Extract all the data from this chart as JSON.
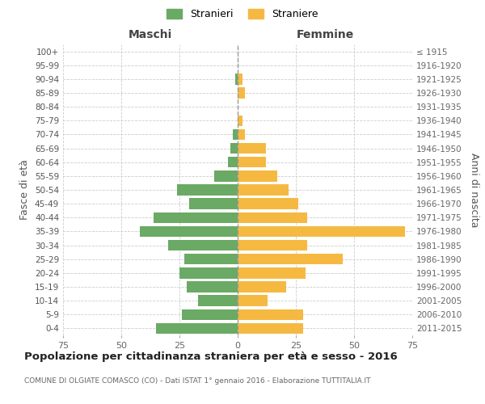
{
  "age_groups": [
    "0-4",
    "5-9",
    "10-14",
    "15-19",
    "20-24",
    "25-29",
    "30-34",
    "35-39",
    "40-44",
    "45-49",
    "50-54",
    "55-59",
    "60-64",
    "65-69",
    "70-74",
    "75-79",
    "80-84",
    "85-89",
    "90-94",
    "95-99",
    "100+"
  ],
  "birth_years": [
    "2011-2015",
    "2006-2010",
    "2001-2005",
    "1996-2000",
    "1991-1995",
    "1986-1990",
    "1981-1985",
    "1976-1980",
    "1971-1975",
    "1966-1970",
    "1961-1965",
    "1956-1960",
    "1951-1955",
    "1946-1950",
    "1941-1945",
    "1936-1940",
    "1931-1935",
    "1926-1930",
    "1921-1925",
    "1916-1920",
    "≤ 1915"
  ],
  "maschi": [
    35,
    24,
    17,
    22,
    25,
    23,
    30,
    42,
    36,
    21,
    26,
    10,
    4,
    3,
    2,
    0,
    0,
    0,
    1,
    0,
    0
  ],
  "femmine": [
    28,
    28,
    13,
    21,
    29,
    45,
    30,
    72,
    30,
    26,
    22,
    17,
    12,
    12,
    3,
    2,
    0,
    3,
    2,
    0,
    0
  ],
  "color_maschi": "#6aaa64",
  "color_femmine": "#f5b942",
  "title": "Popolazione per cittadinanza straniera per età e sesso - 2016",
  "subtitle": "COMUNE DI OLGIATE COMASCO (CO) - Dati ISTAT 1° gennaio 2016 - Elaborazione TUTTITALIA.IT",
  "ylabel_left": "Fasce di età",
  "ylabel_right": "Anni di nascita",
  "xlabel_maschi": "Maschi",
  "xlabel_femmine": "Femmine",
  "legend_maschi": "Stranieri",
  "legend_femmine": "Straniere",
  "xlim": 75,
  "background_color": "#ffffff",
  "grid_color": "#cccccc"
}
